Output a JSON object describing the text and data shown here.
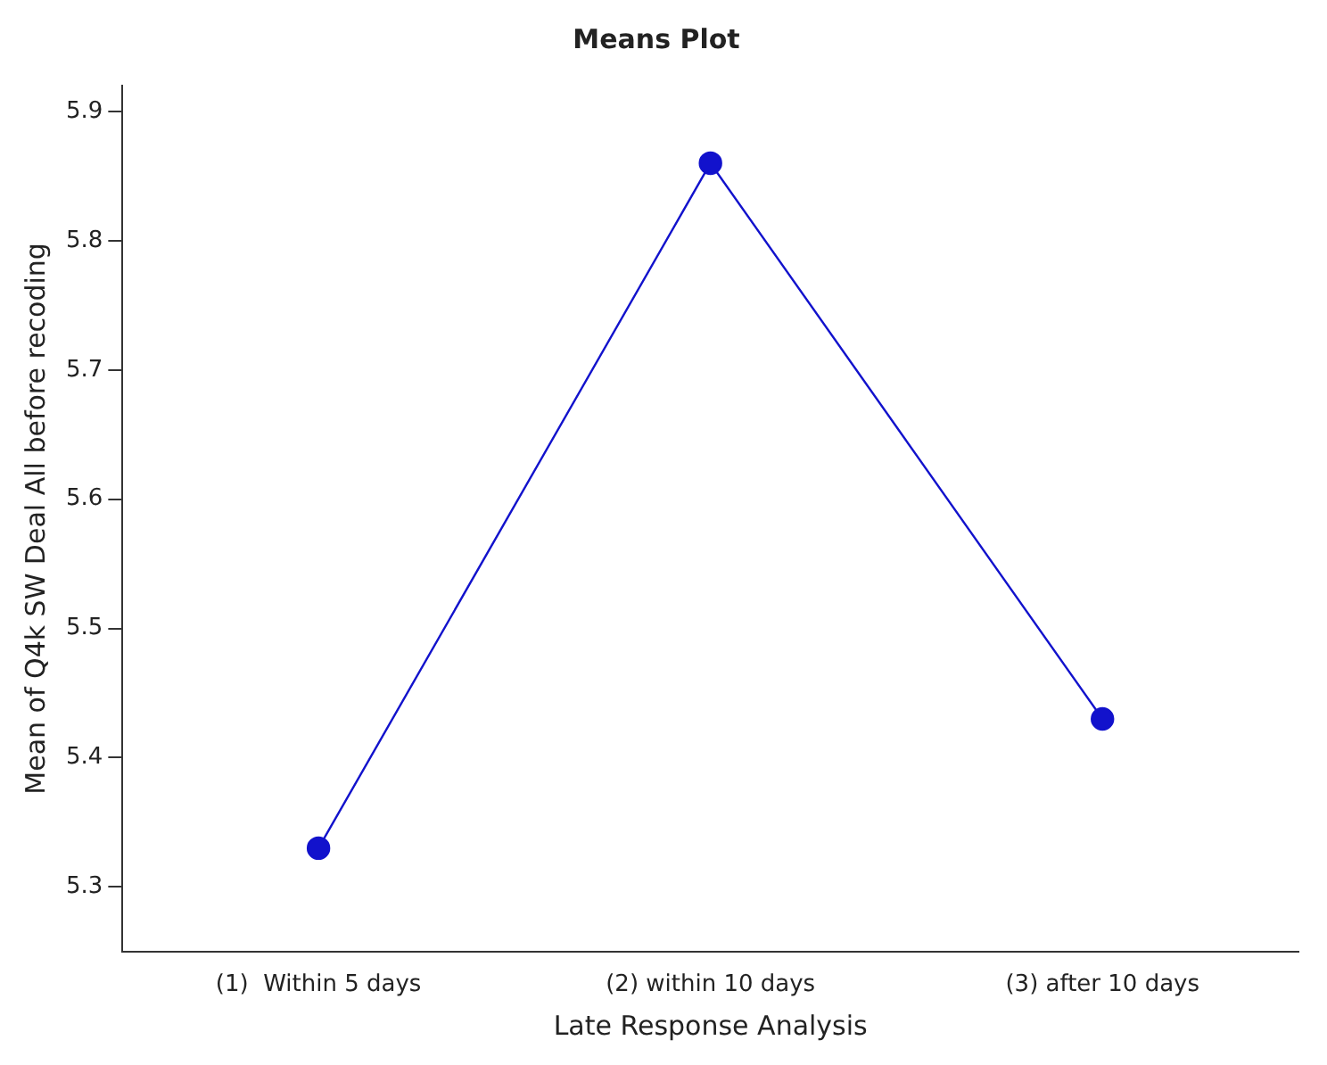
{
  "chart_data": {
    "type": "line",
    "title": "Means Plot",
    "xlabel": "Late Response Analysis",
    "ylabel": "Mean of Q4k SW Deal All before recoding",
    "categories": [
      "(1)  Within 5 days",
      "(2) within 10 days",
      "(3) after 10 days"
    ],
    "series": [
      {
        "color": "#1212cc",
        "values": [
          5.33,
          5.86,
          5.43
        ]
      }
    ],
    "ylim": [
      5.25,
      5.92
    ],
    "yticks": [
      5.3,
      5.4,
      5.5,
      5.6,
      5.7,
      5.8,
      5.9
    ],
    "grid": false,
    "legend": false,
    "marker": "circle",
    "line_style": "solid"
  }
}
